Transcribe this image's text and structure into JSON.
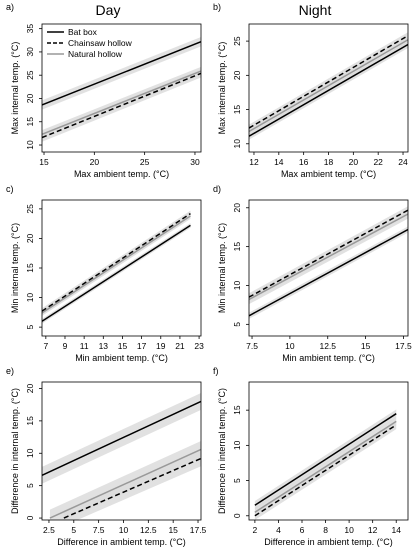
{
  "column_titles": [
    "Day",
    "Night"
  ],
  "legend": {
    "entries": [
      {
        "label": "Bat box",
        "style": "solid",
        "color": "#000000"
      },
      {
        "label": "Chainsaw hollow",
        "style": "dashed",
        "color": "#000000"
      },
      {
        "label": "Natural hollow",
        "style": "solid",
        "color": "#999999"
      }
    ]
  },
  "colors": {
    "band": "#dcdcdc",
    "bat_box": "#000000",
    "chainsaw": "#000000",
    "natural": "#999999"
  },
  "chart_data": [
    {
      "panel": "a)",
      "type": "line",
      "column": "Day",
      "xlabel": "Max ambient temp. (°C)",
      "ylabel": "Max internal temp. (°C)",
      "xlim": [
        14.8,
        30.6
      ],
      "ylim": [
        8.5,
        36
      ],
      "xticks": [
        15,
        20,
        25,
        30
      ],
      "xtick_labels": [
        "15",
        "20",
        "25",
        "30"
      ],
      "yticks": [
        10,
        15,
        20,
        25,
        30,
        35
      ],
      "ytick_labels": [
        "10",
        "15",
        "20",
        "25",
        "30",
        "35"
      ],
      "series": [
        {
          "name": "Bat box",
          "x": [
            14.8,
            30.6
          ],
          "y": [
            18.6,
            32.2
          ],
          "ci": 1.0
        },
        {
          "name": "Chainsaw hollow",
          "x": [
            14.8,
            30.6
          ],
          "y": [
            11.6,
            25.4
          ],
          "ci": 0.9
        },
        {
          "name": "Natural hollow",
          "x": [
            14.8,
            30.6
          ],
          "y": [
            12.3,
            25.9
          ],
          "ci": 0.9
        }
      ]
    },
    {
      "panel": "b)",
      "type": "line",
      "column": "Night",
      "xlabel": "Max ambient temp. (°C)",
      "ylabel": "Max internal temp. (°C)",
      "xlim": [
        11.6,
        24.4
      ],
      "ylim": [
        8.8,
        27.5
      ],
      "xticks": [
        12,
        14,
        16,
        18,
        20,
        22,
        24
      ],
      "xtick_labels": [
        "12",
        "14",
        "16",
        "18",
        "20",
        "22",
        "24"
      ],
      "yticks": [
        10,
        15,
        20,
        25
      ],
      "ytick_labels": [
        "10",
        "15",
        "20",
        "25"
      ],
      "series": [
        {
          "name": "Bat box",
          "x": [
            11.6,
            24.4
          ],
          "y": [
            11.1,
            24.5
          ],
          "ci": 0.5
        },
        {
          "name": "Chainsaw hollow",
          "x": [
            11.6,
            24.4
          ],
          "y": [
            12.3,
            25.8
          ],
          "ci": 0.5
        },
        {
          "name": "Natural hollow",
          "x": [
            11.6,
            24.4
          ],
          "y": [
            11.8,
            25.2
          ],
          "ci": 0.5
        }
      ]
    },
    {
      "panel": "c)",
      "type": "line",
      "column": "Day",
      "xlabel": "Min ambient temp. (°C)",
      "ylabel": "Min internal temp. (°C)",
      "xlim": [
        6.6,
        23.2
      ],
      "ylim": [
        3.5,
        26.5
      ],
      "xticks": [
        7,
        9,
        11,
        13,
        15,
        17,
        19,
        21,
        23
      ],
      "xtick_labels": [
        "7",
        "9",
        "11",
        "13",
        "15",
        "17",
        "19",
        "21",
        "23"
      ],
      "yticks": [
        5,
        10,
        15,
        20,
        25
      ],
      "ytick_labels": [
        "5",
        "10",
        "15",
        "20",
        "25"
      ],
      "series": [
        {
          "name": "Bat box",
          "x": [
            6.6,
            22.1
          ],
          "y": [
            6.0,
            22.2
          ],
          "ci": 0.4
        },
        {
          "name": "Chainsaw hollow",
          "x": [
            6.6,
            22.1
          ],
          "y": [
            7.7,
            24.2
          ],
          "ci": 0.5
        },
        {
          "name": "Natural hollow",
          "x": [
            6.6,
            22.1
          ],
          "y": [
            7.4,
            23.8
          ],
          "ci": 0.5
        }
      ]
    },
    {
      "panel": "d)",
      "type": "line",
      "column": "Night",
      "xlabel": "Min ambient temp. (°C)",
      "ylabel": "Min internal temp. (°C)",
      "xlim": [
        7.3,
        17.8
      ],
      "ylim": [
        3.5,
        21
      ],
      "xticks": [
        7.5,
        10,
        12.5,
        15,
        17.5
      ],
      "xtick_labels": [
        "7.5",
        "10",
        "12.5",
        "15",
        "17.5"
      ],
      "yticks": [
        5,
        10,
        15,
        20
      ],
      "ytick_labels": [
        "5",
        "10",
        "15",
        "20"
      ],
      "series": [
        {
          "name": "Bat box",
          "x": [
            7.3,
            17.8
          ],
          "y": [
            6.1,
            17.2
          ],
          "ci": 0.4
        },
        {
          "name": "Chainsaw hollow",
          "x": [
            7.3,
            17.8
          ],
          "y": [
            8.5,
            19.7
          ],
          "ci": 0.5
        },
        {
          "name": "Natural hollow",
          "x": [
            7.3,
            17.8
          ],
          "y": [
            8.2,
            19.2
          ],
          "ci": 0.6
        }
      ]
    },
    {
      "panel": "e)",
      "type": "line",
      "column": "Day",
      "xlabel": "Difference in ambient temp. (°C)",
      "ylabel": "Difference in internal temp. (°C)",
      "xlim": [
        1.8,
        17.8
      ],
      "ylim": [
        -0.3,
        21
      ],
      "xticks": [
        2.5,
        5,
        7.5,
        10,
        12.5,
        15,
        17.5
      ],
      "xtick_labels": [
        "2.5",
        "5",
        "7.5",
        "10",
        "12.5",
        "15",
        "17.5"
      ],
      "yticks": [
        0,
        5,
        10,
        15,
        20
      ],
      "ytick_labels": [
        "0",
        "5",
        "10",
        "15",
        "20"
      ],
      "series": [
        {
          "name": "Bat box",
          "x": [
            1.8,
            17.8
          ],
          "y": [
            6.6,
            18.0
          ],
          "ci": 1.3
        },
        {
          "name": "Chainsaw hollow",
          "x": [
            4.0,
            17.8
          ],
          "y": [
            0.0,
            9.2
          ],
          "ci": 1.2
        },
        {
          "name": "Natural hollow",
          "x": [
            2.6,
            17.8
          ],
          "y": [
            0.0,
            10.6
          ],
          "ci": 1.3
        }
      ]
    },
    {
      "panel": "f)",
      "type": "line",
      "column": "Night",
      "xlabel": "Difference in ambient temp. (°C)",
      "ylabel": "Difference in internal temp. (°C)",
      "xlim": [
        1.5,
        15.0
      ],
      "ylim": [
        -0.6,
        19
      ],
      "xticks": [
        2,
        4,
        6,
        8,
        10,
        12,
        14
      ],
      "xtick_labels": [
        "2",
        "4",
        "6",
        "8",
        "10",
        "12",
        "14"
      ],
      "yticks": [
        0,
        5,
        10,
        15
      ],
      "ytick_labels": [
        "0",
        "5",
        "10",
        "15"
      ],
      "series": [
        {
          "name": "Bat box",
          "x": [
            2.0,
            14.0
          ],
          "y": [
            1.5,
            14.5
          ],
          "ci": 0.6
        },
        {
          "name": "Chainsaw hollow",
          "x": [
            2.0,
            14.0
          ],
          "y": [
            0.0,
            12.9
          ],
          "ci": 0.6
        },
        {
          "name": "Natural hollow",
          "x": [
            2.0,
            14.0
          ],
          "y": [
            0.5,
            13.4
          ],
          "ci": 0.6
        }
      ]
    }
  ]
}
